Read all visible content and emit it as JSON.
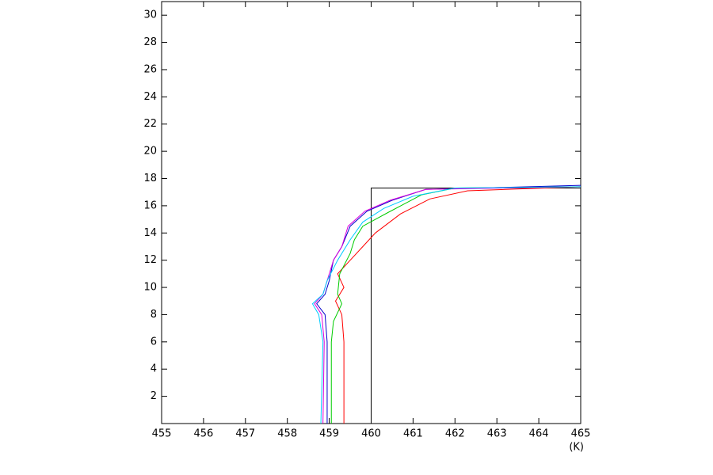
{
  "chart_data": {
    "type": "line",
    "x_label": "(K)",
    "xlim": [
      455,
      465
    ],
    "ylim": [
      0,
      31
    ],
    "xticks": [
      455,
      456,
      457,
      458,
      459,
      460,
      461,
      462,
      463,
      464,
      465
    ],
    "yticks": [
      2,
      4,
      6,
      8,
      10,
      12,
      14,
      16,
      18,
      20,
      22,
      24,
      26,
      28,
      30
    ],
    "series": [
      {
        "color": "#000000",
        "x": [
          460,
          460,
          465
        ],
        "y": [
          0,
          17.3,
          17.3
        ]
      },
      {
        "color": "#ff0000",
        "x": [
          459.35,
          459.35,
          459.3,
          459.15,
          459.35,
          459.2,
          459.5,
          459.8,
          460.1,
          460.7,
          461.4,
          462.3,
          465
        ],
        "y": [
          0,
          6,
          8,
          9,
          10,
          11,
          12,
          13,
          14,
          15.4,
          16.5,
          17.1,
          17.4
        ]
      },
      {
        "color": "#00cc00",
        "x": [
          459.05,
          459.05,
          459.1,
          459.3,
          459.2,
          459.25,
          459.5,
          459.6,
          459.8,
          460.4,
          461.2,
          462,
          465
        ],
        "y": [
          0,
          6,
          7.5,
          8.8,
          9.5,
          11,
          12.5,
          13.5,
          14.5,
          15.5,
          16.8,
          17.3,
          17.4
        ]
      },
      {
        "color": "#0000cc",
        "x": [
          458.95,
          458.95,
          458.9,
          458.7,
          458.9,
          459,
          459.1,
          459.3,
          459.5,
          459.9,
          460.5,
          461.3,
          465
        ],
        "y": [
          0,
          6,
          8,
          8.8,
          9.5,
          10.5,
          12,
          13,
          14.5,
          15.6,
          16.4,
          17.2,
          17.5
        ]
      },
      {
        "color": "#dd00dd",
        "x": [
          458.85,
          458.88,
          458.82,
          458.65,
          458.85,
          458.95,
          459.1,
          459.3,
          459.45,
          459.85,
          460.45,
          461.3,
          465
        ],
        "y": [
          0,
          6,
          8,
          8.8,
          9.5,
          10.5,
          12,
          13,
          14.5,
          15.6,
          16.4,
          17.2,
          17.4
        ]
      },
      {
        "color": "#00ccff",
        "x": [
          458.8,
          458.85,
          458.75,
          458.6,
          458.85,
          458.95,
          459.2,
          459.5,
          459.8,
          460.3,
          461,
          462,
          465
        ],
        "y": [
          0,
          6,
          8,
          8.8,
          9.5,
          10.5,
          12,
          13.5,
          14.8,
          15.8,
          16.7,
          17.3,
          17.4
        ]
      }
    ]
  }
}
